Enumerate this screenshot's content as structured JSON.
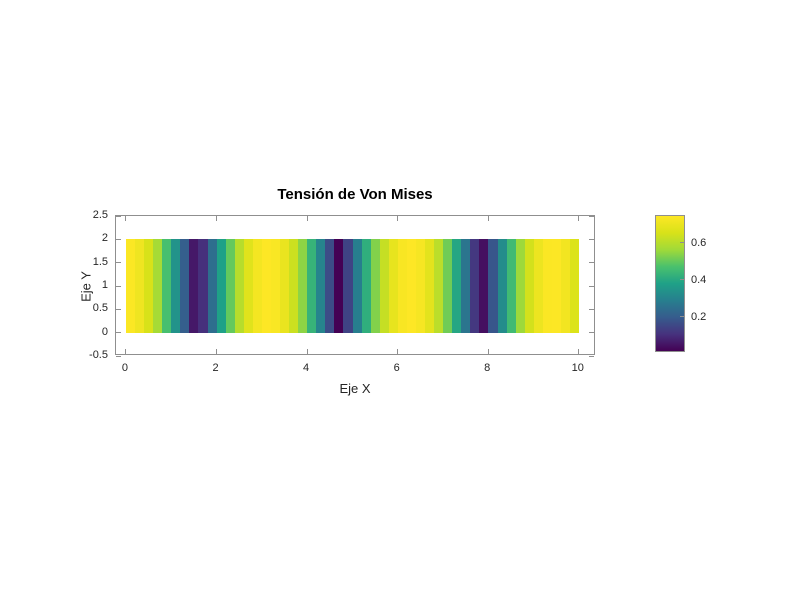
{
  "figure": {
    "background": "#ffffff",
    "axis_color": "#8f8f8f",
    "label_color": "#262626",
    "title_color": "#000000"
  },
  "chart_data": {
    "type": "heatmap",
    "title": "Tensión de Von Mises",
    "xlabel": "Eje X",
    "ylabel": "Eje Y",
    "xlim": [
      -0.22,
      10.38
    ],
    "ylim": [
      -0.5,
      2.5
    ],
    "band_y": [
      0,
      2
    ],
    "x_start": 0,
    "x_end": 10,
    "element_width": 0.2,
    "x_ticks": [
      0,
      2,
      4,
      6,
      8,
      10
    ],
    "x_tick_labels": [
      "0",
      "2",
      "4",
      "6",
      "8",
      "10"
    ],
    "y_ticks": [
      -0.5,
      0,
      0.5,
      1,
      1.5,
      2,
      2.5
    ],
    "y_tick_labels": [
      "-0.5",
      "0",
      "0.5",
      "1",
      "1.5",
      "2",
      "2.5"
    ],
    "values": [
      0.746,
      0.716,
      0.658,
      0.574,
      0.466,
      0.34,
      0.201,
      0.053,
      0.097,
      0.242,
      0.379,
      0.5,
      0.601,
      0.678,
      0.728,
      0.749,
      0.741,
      0.702,
      0.636,
      0.544,
      0.431,
      0.301,
      0.158,
      0.009,
      0.14,
      0.284,
      0.416,
      0.532,
      0.626,
      0.696,
      0.738,
      0.75,
      0.732,
      0.685,
      0.609,
      0.513,
      0.395,
      0.26,
      0.115,
      0.035,
      0.182,
      0.323,
      0.452,
      0.561,
      0.649,
      0.711,
      0.744,
      0.748,
      0.722,
      0.667
    ],
    "colorbar": {
      "ticks": [
        0.2,
        0.4,
        0.6
      ],
      "tick_labels": [
        "0.2",
        "0.4",
        "0.6"
      ]
    },
    "colormap": {
      "name": "viridis",
      "stops": [
        [
          0.0,
          "#440154"
        ],
        [
          0.125,
          "#46327e"
        ],
        [
          0.25,
          "#365c8d"
        ],
        [
          0.375,
          "#277f8e"
        ],
        [
          0.5,
          "#1fa187"
        ],
        [
          0.625,
          "#4ac16d"
        ],
        [
          0.75,
          "#a0da39"
        ],
        [
          0.875,
          "#d8e219"
        ],
        [
          1.0,
          "#fde725"
        ]
      ]
    },
    "legend": "colorbar-right",
    "grid": false
  }
}
